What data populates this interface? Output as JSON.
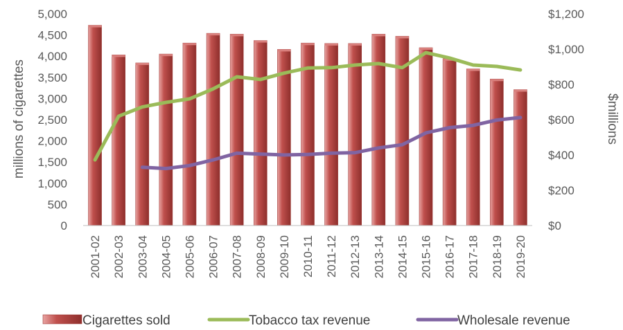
{
  "chart_data": {
    "type": "bar",
    "categories": [
      "2001-02",
      "2002-03",
      "2003-04",
      "2004-05",
      "2005-06",
      "2006-07",
      "2007-08",
      "2008-09",
      "2009-10",
      "2010-11",
      "2011-12",
      "2012-13",
      "2013-14",
      "2014-15",
      "2015-16",
      "2016-17",
      "2017-18",
      "2018-19",
      "2019-20"
    ],
    "title": "",
    "xlabel": "",
    "ylabel": "millions of cigarettes",
    "y2label": "$millions",
    "ylim": [
      0,
      5000
    ],
    "y2lim": [
      0,
      1200
    ],
    "y_ticks": [
      "0",
      "500",
      "1,000",
      "1,500",
      "2,000",
      "2,500",
      "3,000",
      "3,500",
      "4,000",
      "4,500",
      "5,000"
    ],
    "y2_ticks": [
      "$0",
      "$200",
      "$400",
      "$600",
      "$800",
      "$1,000",
      "$1,200"
    ],
    "grid": false,
    "legend_position": "bottom",
    "series": [
      {
        "name": "Cigarettes sold",
        "type": "bar",
        "axis": "left",
        "color": "#c0504d",
        "values": [
          4730,
          4030,
          3840,
          4050,
          4310,
          4540,
          4520,
          4370,
          4160,
          4310,
          4300,
          4300,
          4520,
          4470,
          4200,
          3940,
          3700,
          3460,
          3210
        ]
      },
      {
        "name": "Tobacco tax revenue",
        "type": "line",
        "axis": "right",
        "color": "#9bbb59",
        "values": [
          372,
          620,
          672,
          698,
          718,
          775,
          843,
          828,
          864,
          893,
          895,
          910,
          918,
          895,
          980,
          950,
          910,
          902,
          882
        ]
      },
      {
        "name": "Wholesale revenue",
        "type": "line",
        "axis": "right",
        "color": "#8064a2",
        "values": [
          null,
          null,
          330,
          323,
          340,
          372,
          410,
          405,
          400,
          403,
          410,
          413,
          440,
          458,
          525,
          555,
          568,
          598,
          612
        ]
      }
    ]
  }
}
